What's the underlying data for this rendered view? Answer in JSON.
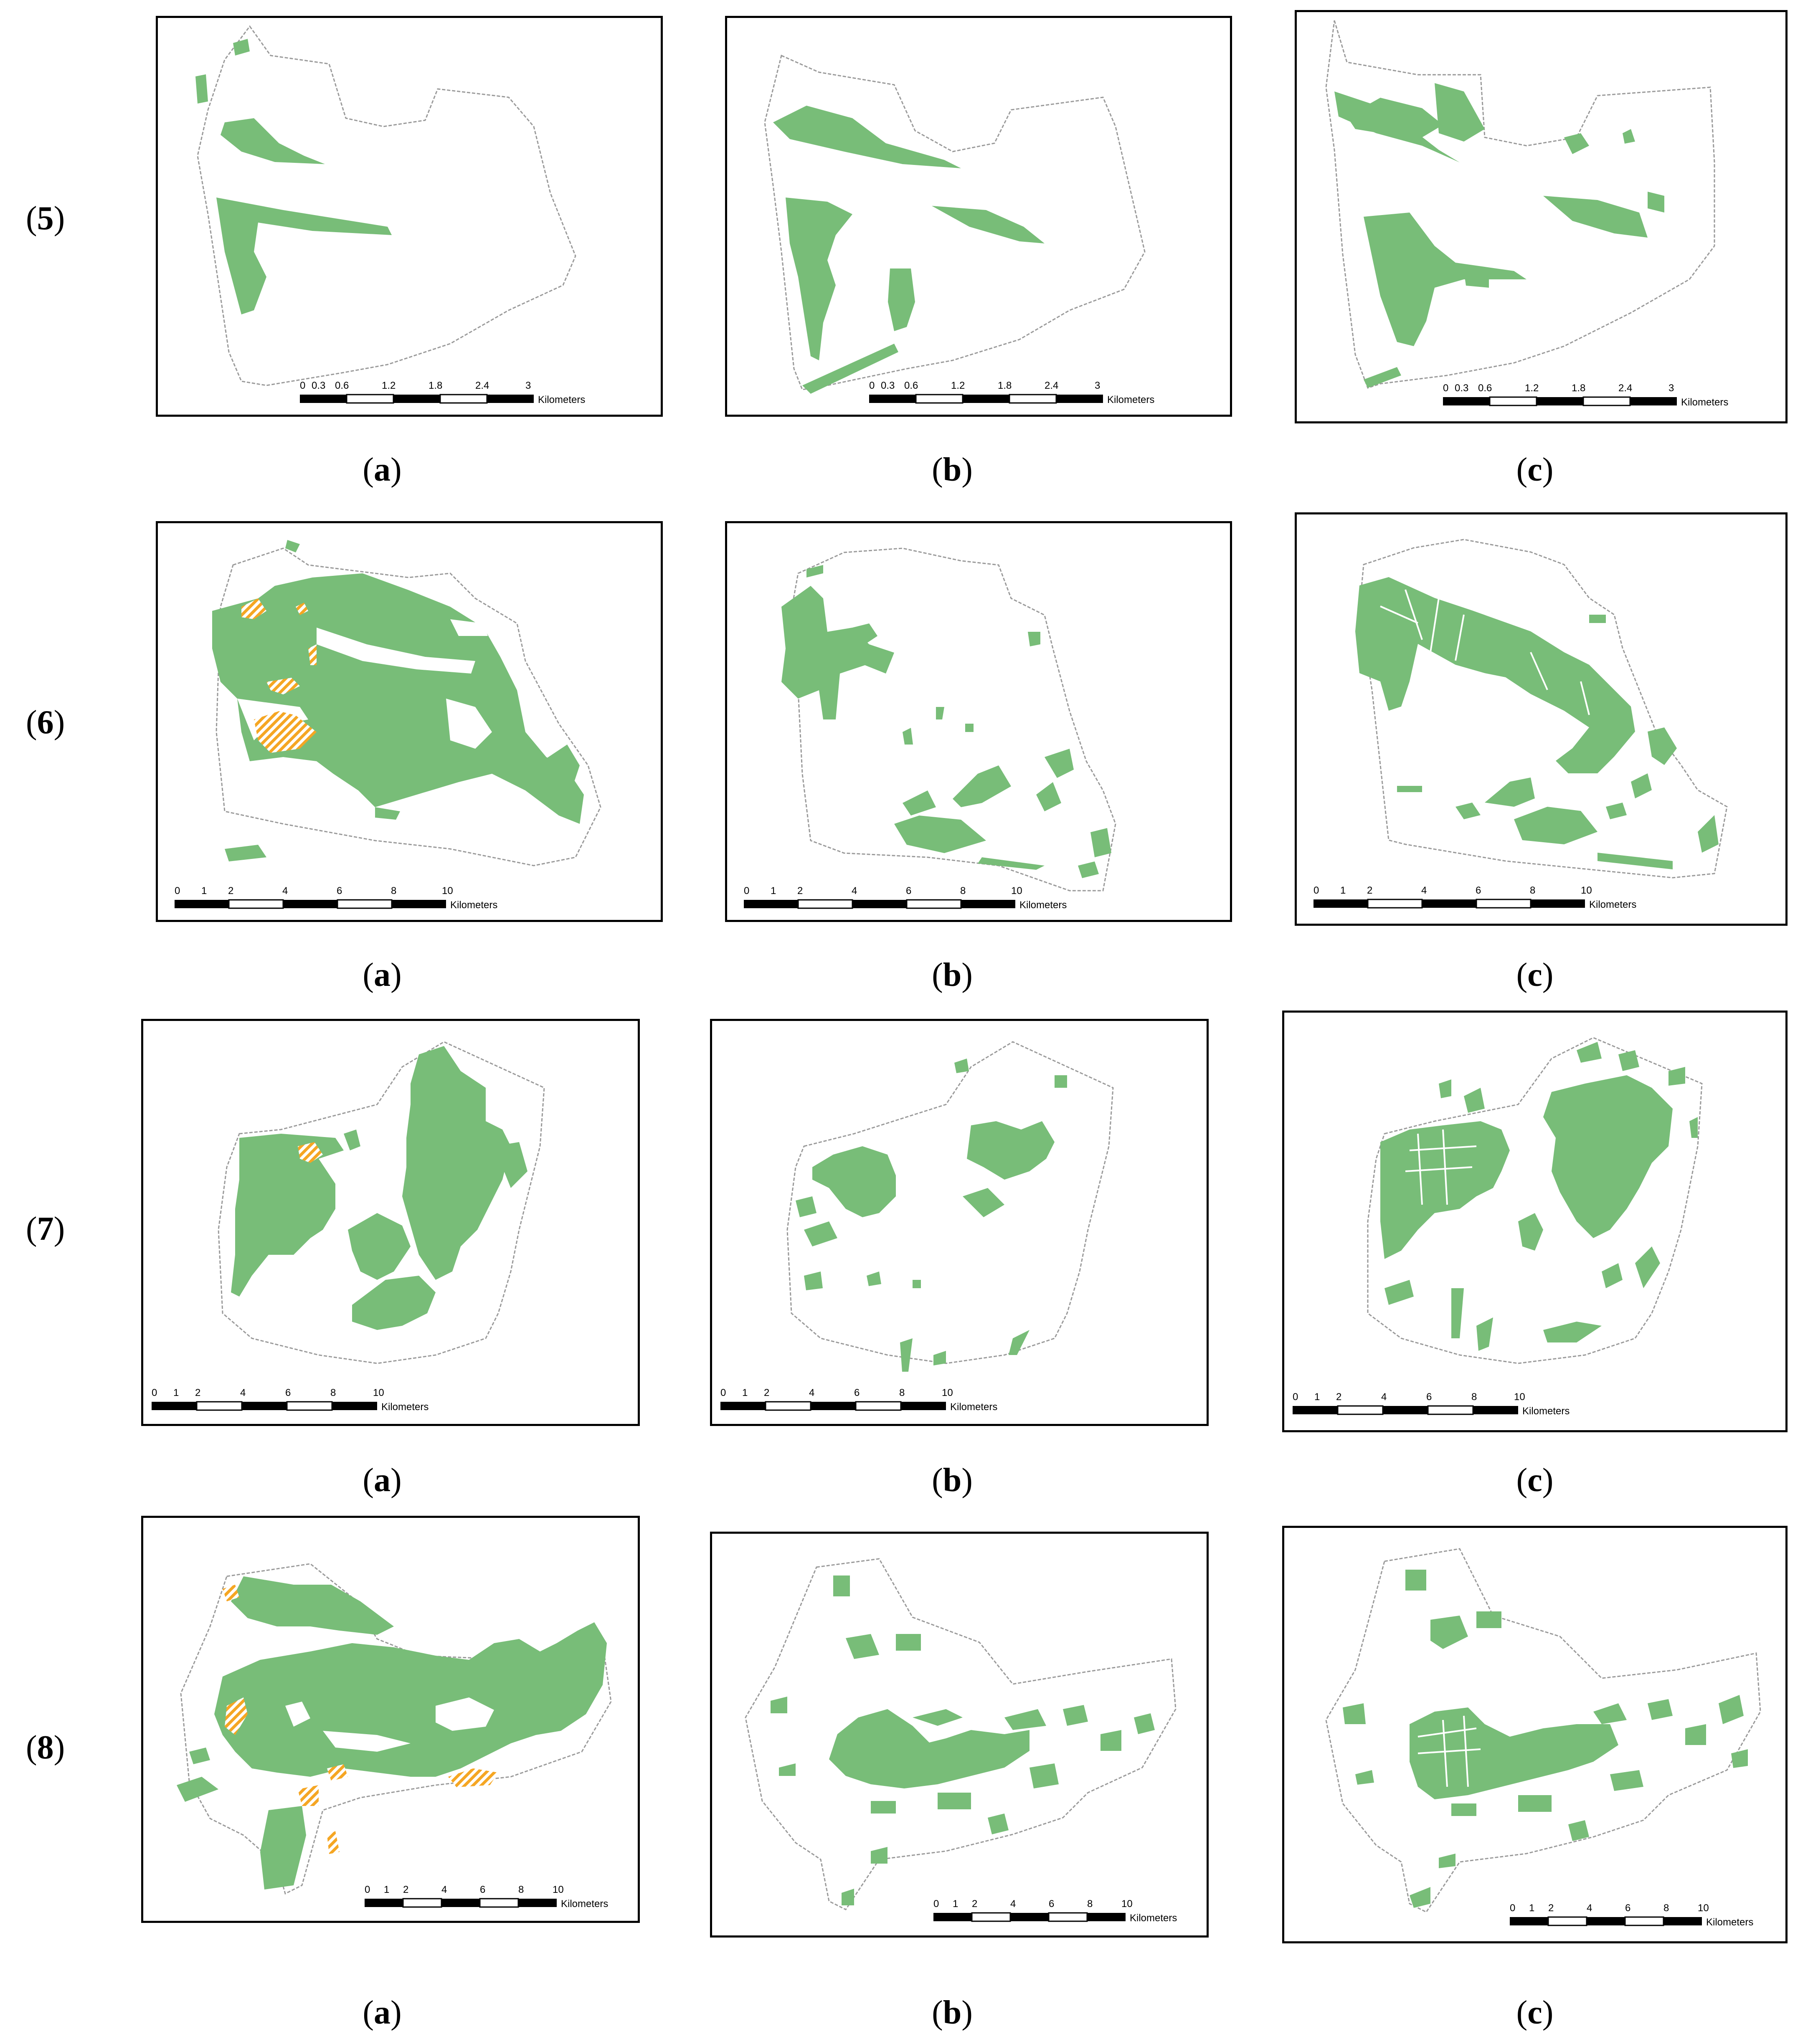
{
  "colors": {
    "forest": "#78bd78",
    "hatch": "#f5a623",
    "boundary": "#9a9a9a",
    "frame": "#000000"
  },
  "rows": [
    {
      "label": "5",
      "scale": {
        "ticks": [
          "0",
          "0.3",
          "0.6",
          "1.2",
          "1.8",
          "2.4",
          "3"
        ],
        "unit": "Kilometers"
      }
    },
    {
      "label": "6",
      "scale": {
        "ticks": [
          "0",
          "1",
          "2",
          "4",
          "6",
          "8",
          "10"
        ],
        "unit": "Kilometers"
      }
    },
    {
      "label": "7",
      "scale": {
        "ticks": [
          "0",
          "1",
          "2",
          "4",
          "6",
          "8",
          "10"
        ],
        "unit": "Kilometers"
      }
    },
    {
      "label": "8",
      "scale": {
        "ticks": [
          "0",
          "1",
          "2",
          "4",
          "6",
          "8",
          "10"
        ],
        "unit": "Kilometers"
      }
    }
  ],
  "captions": [
    "a",
    "b",
    "c"
  ]
}
